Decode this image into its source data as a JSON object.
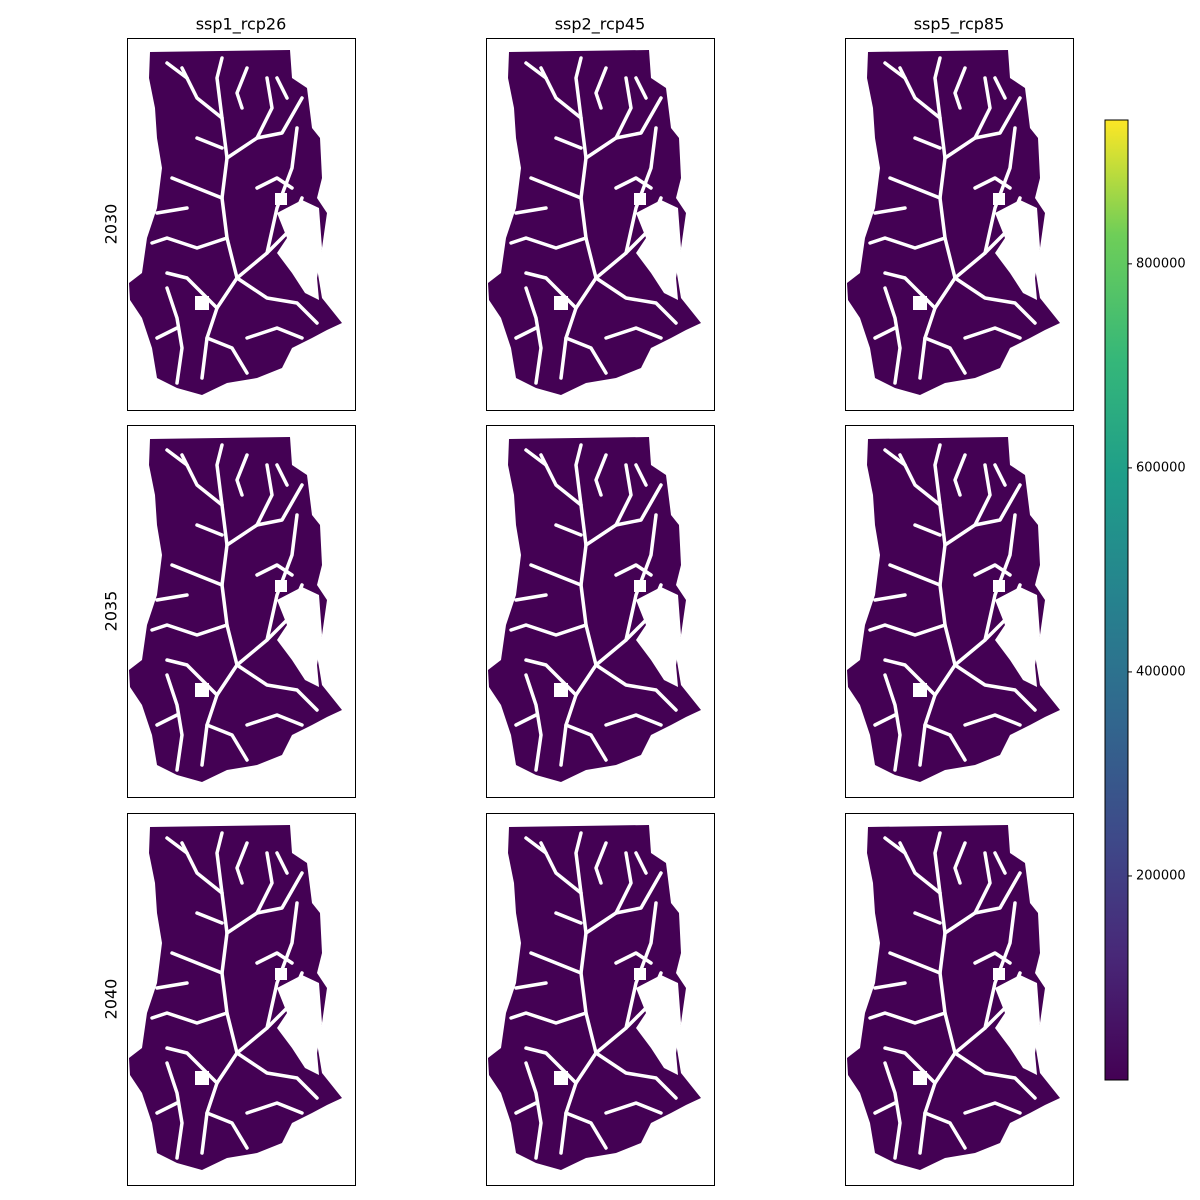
{
  "chart_data": {
    "type": "raster_grid",
    "columns": [
      "ssp1_rcp26",
      "ssp2_rcp45",
      "ssp5_rcp85"
    ],
    "rows": [
      "2030",
      "2035",
      "2040"
    ],
    "map_color": "#440154",
    "colorbar": {
      "lim": [
        0,
        941000
      ],
      "ticks": [
        200000,
        400000,
        600000,
        800000
      ]
    }
  }
}
